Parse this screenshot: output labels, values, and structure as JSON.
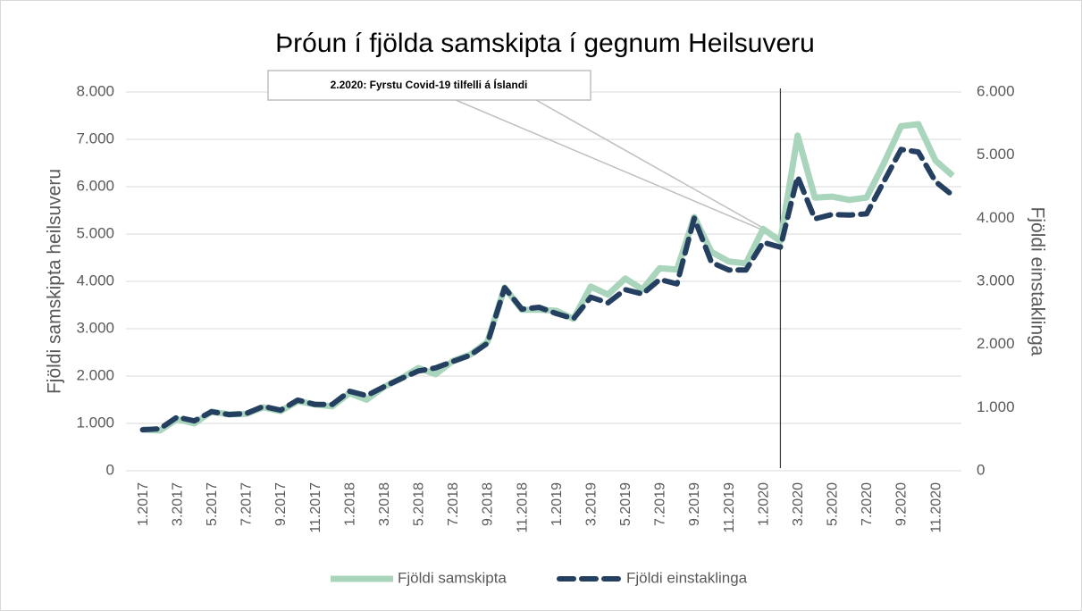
{
  "chart_data": {
    "type": "line",
    "title": "Þróun í fjölda samskipta í gegnum Heilsuveru",
    "annotation": "2.2020: Fyrstu Covid-19 tilfelli á Íslandi",
    "y_label": "Fjöldi samskipta heilsuveru",
    "y2_label": "Fjöldi einstaklinga",
    "categories": [
      "1.2017",
      null,
      "3.2017",
      null,
      "5.2017",
      null,
      "7.2017",
      null,
      "9.2017",
      null,
      "11.2017",
      null,
      "1.2018",
      null,
      "3.2018",
      null,
      "5.2018",
      null,
      "7.2018",
      null,
      "9.2018",
      null,
      "11.2018",
      null,
      "1.2019",
      null,
      "3.2019",
      null,
      "5.2019",
      null,
      "7.2019",
      null,
      "9.2019",
      null,
      "11.2019",
      null,
      "1.2020",
      null,
      "3.2020",
      null,
      "5.2020",
      null,
      "7.2020",
      null,
      "9.2020",
      null,
      "11.2020",
      null
    ],
    "series": [
      {
        "name": "Fjöldi samskipta",
        "color": "#a8d5bc",
        "axis": "y",
        "dash": false,
        "values": [
          870,
          850,
          1090,
          1000,
          1250,
          1190,
          1200,
          1340,
          1260,
          1470,
          1400,
          1360,
          1640,
          1500,
          1770,
          1950,
          2170,
          2040,
          2320,
          2450,
          2720,
          3870,
          3400,
          3400,
          3380,
          3210,
          3890,
          3720,
          4060,
          3830,
          4280,
          4250,
          5360,
          4620,
          4420,
          4380,
          5110,
          4850,
          7080,
          5770,
          5790,
          5720,
          5770,
          6490,
          7280,
          7320,
          6550,
          6230
        ]
      },
      {
        "name": "Fjöldi einstaklinga",
        "color": "#243f60",
        "axis": "y2",
        "dash": true,
        "values": [
          650,
          665,
          850,
          790,
          935,
          890,
          905,
          1020,
          960,
          1120,
          1050,
          1050,
          1260,
          1190,
          1330,
          1460,
          1580,
          1630,
          1730,
          1830,
          2020,
          2900,
          2560,
          2590,
          2490,
          2410,
          2750,
          2660,
          2870,
          2800,
          3030,
          2960,
          4000,
          3300,
          3180,
          3180,
          3620,
          3540,
          4660,
          3990,
          4060,
          4050,
          4070,
          4580,
          5090,
          5050,
          4580,
          4360
        ]
      }
    ],
    "ylim": [
      0,
      8000
    ],
    "yticks": [
      0,
      {
        "value": 1000,
        "label": "1.000"
      },
      {
        "value": 2000,
        "label": "2.000"
      },
      {
        "value": 3000,
        "label": "3.000"
      },
      {
        "value": 4000,
        "label": "4.000"
      },
      {
        "value": 5000,
        "label": "5.000"
      },
      {
        "value": 6000,
        "label": "6.000"
      },
      {
        "value": 7000,
        "label": "7.000"
      },
      {
        "value": 8000,
        "label": "8.000"
      }
    ],
    "y2lim": [
      0,
      6000
    ],
    "y2ticks": [
      0,
      {
        "value": 1000,
        "label": "1.000"
      },
      {
        "value": 2000,
        "label": "2.000"
      },
      {
        "value": 3000,
        "label": "3.000"
      },
      {
        "value": 4000,
        "label": "4.000"
      },
      {
        "value": 5000,
        "label": "5.000"
      },
      {
        "value": 6000,
        "label": "6.000"
      }
    ],
    "grid": true,
    "legend": "bottom"
  }
}
